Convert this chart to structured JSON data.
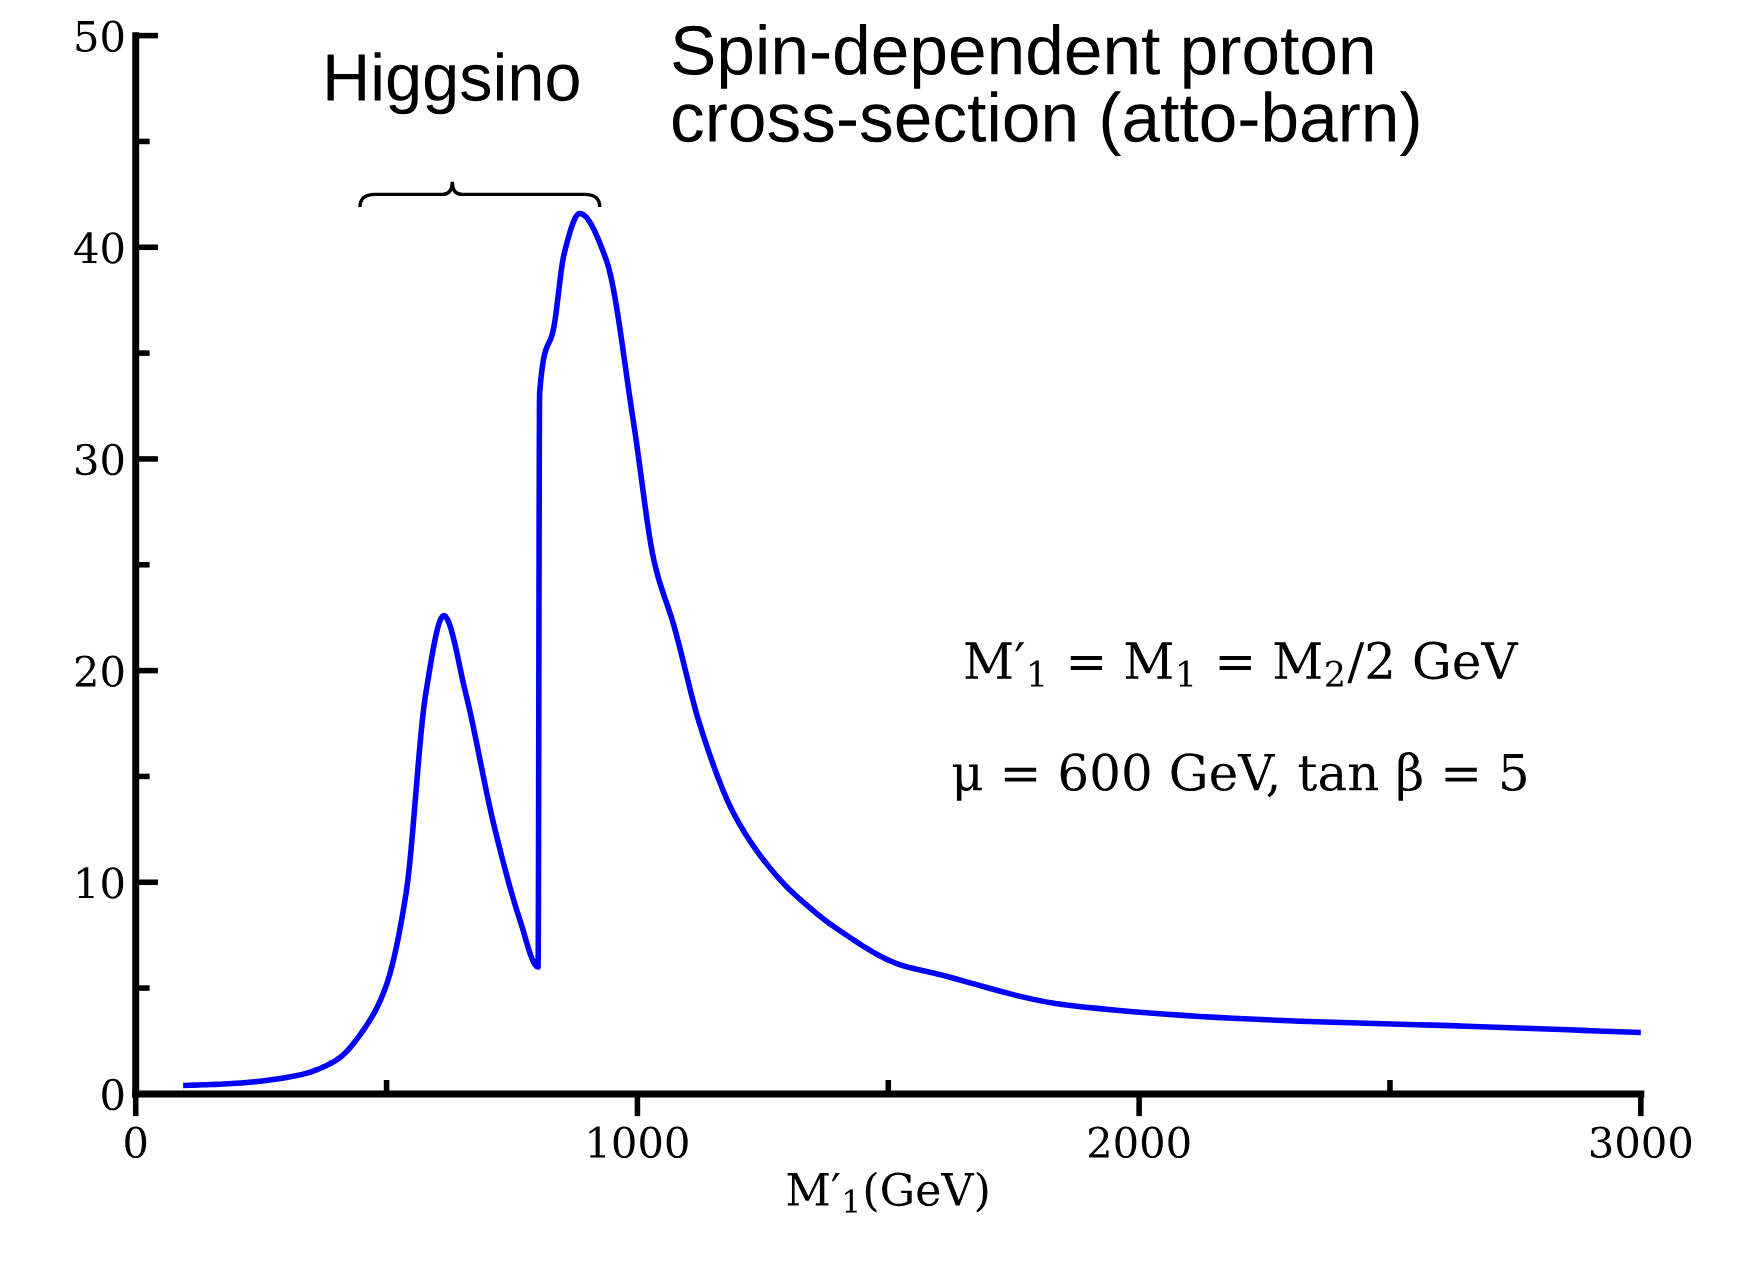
{
  "chart_data": {
    "type": "line",
    "xlabel": "M′$_{1}$(GeV)",
    "ylabel": "Spin-dependent proton cross-section (atto-barn)",
    "annotations": [
      "Higgsino",
      "M′$_{1}$ = M$_{1}$ = M$_{2}$/2 GeV",
      "μ = 600 GeV, tan β = 5"
    ],
    "xlim": [
      0,
      3000
    ],
    "ylim": [
      0,
      50
    ],
    "xticks": [
      0,
      {
        "value": 500,
        "label": null
      },
      1000,
      {
        "value": 1500,
        "label": null
      },
      2000,
      {
        "value": 2500,
        "label": null
      },
      3000
    ],
    "yticks": [
      0,
      {
        "value": 5,
        "label": null
      },
      10,
      {
        "value": 15,
        "label": null
      },
      20,
      {
        "value": 25,
        "label": null
      },
      30,
      {
        "value": 35,
        "label": null
      },
      40,
      {
        "value": 45,
        "label": null
      },
      50
    ],
    "grid": false,
    "marker": "none",
    "line_style": "solid",
    "series": [
      {
        "color": "#0000ff",
        "x": [
          100,
          200,
          327,
          400,
          459,
          499,
          539,
          578,
          614,
          658,
          714,
          766,
          802,
          805,
          834,
          854,
          885,
          938,
          993,
          1033,
          1073,
          1125,
          1193,
          1285,
          1324,
          1392,
          1524,
          1592,
          1855,
          2254,
          2653,
          3000
        ],
        "values": [
          0.4,
          0.5,
          0.9,
          1.6,
          3.2,
          5.1,
          9.5,
          18.9,
          22.6,
          18.9,
          12.7,
          8.2,
          6.0,
          33.1,
          36.3,
          39.7,
          41.6,
          39.4,
          31.6,
          25.2,
          22.1,
          17.4,
          13.2,
          10.1,
          9.2,
          7.9,
          6.1,
          5.7,
          4.2,
          3.5,
          3.2,
          2.9
        ]
      }
    ]
  }
}
